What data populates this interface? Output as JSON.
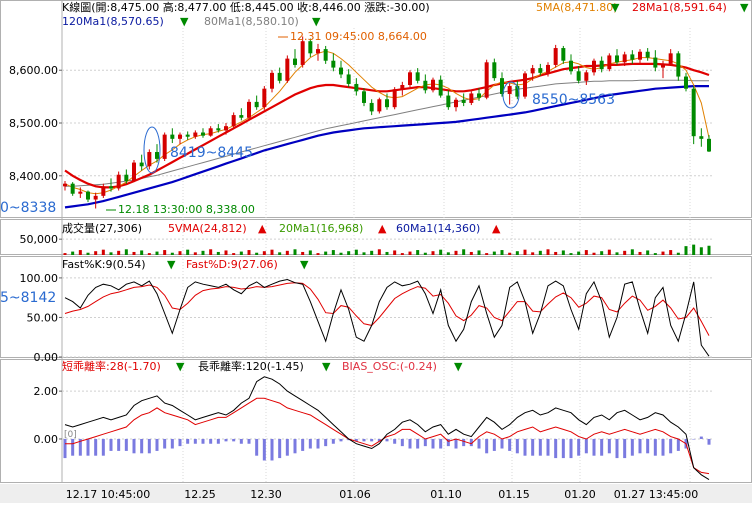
{
  "header": {
    "title": "K線圖",
    "ohlc": "(開:8,475.00 高:8,477.00 低:8,445.00 收:8,446.00 漲跌:-30.00)",
    "ma5": "5MA(8,471.80)",
    "ma28": "28Ma1(8,591.64)",
    "ma120": "120Ma1(8,570.65)",
    "ma80": "80Ma1(8,580.10)"
  },
  "annotations": {
    "high_label": "12.31 09:45:00  8,664.00",
    "low_label": "12.18 13:30:00  8,338.00",
    "range1": "8419~8445",
    "range2": "8550~8563",
    "left_cut_price": "0~8338",
    "left_cut_kd": "5~8142",
    "bias_flag": "[0]"
  },
  "volume_header": {
    "label": "成交量(27,306)",
    "vma5": "5VMA(24,812)",
    "vma20": "20Ma1(16,968)",
    "vma60": "60Ma1(14,360)"
  },
  "kd_header": {
    "k": "Fast%K:9(0.54)",
    "d": "Fast%D:9(27.06)"
  },
  "bias_header": {
    "short": "短乖離率:28(-1.70)",
    "long": "長乖離率:120(-1.45)",
    "osc": "BIAS_OSC:(-0.24)"
  },
  "colors": {
    "up": "#d40000",
    "down": "#008a00",
    "ma5": "#e08000",
    "ma28": "#e00000",
    "ma120": "#0000c0",
    "ma80": "#808080",
    "osc_bar": "#7a7ae0",
    "header_blue": "#0a1aa0",
    "header_green": "#3a9a00"
  },
  "chart_data": [
    {
      "type": "candlestick",
      "name": "price",
      "yticks": [
        "8,600.00",
        "8,500.00",
        "8,400.00"
      ],
      "ytick_values": [
        8600,
        8500,
        8400
      ],
      "ylim": [
        8320,
        8680
      ],
      "candles": [
        [
          8380,
          8390,
          8372,
          8385
        ],
        [
          8385,
          8388,
          8362,
          8366
        ],
        [
          8366,
          8378,
          8358,
          8370
        ],
        [
          8370,
          8372,
          8350,
          8355
        ],
        [
          8355,
          8368,
          8338,
          8362
        ],
        [
          8362,
          8385,
          8358,
          8380
        ],
        [
          8380,
          8395,
          8370,
          8376
        ],
        [
          8376,
          8408,
          8372,
          8402
        ],
        [
          8402,
          8412,
          8385,
          8390
        ],
        [
          8390,
          8430,
          8388,
          8425
        ],
        [
          8425,
          8440,
          8410,
          8418
        ],
        [
          8418,
          8450,
          8412,
          8445
        ],
        [
          8445,
          8460,
          8425,
          8432
        ],
        [
          8432,
          8482,
          8428,
          8478
        ],
        [
          8478,
          8490,
          8462,
          8470
        ],
        [
          8470,
          8482,
          8460,
          8478
        ],
        [
          8478,
          8484,
          8468,
          8474
        ],
        [
          8474,
          8486,
          8470,
          8482
        ],
        [
          8482,
          8490,
          8472,
          8476
        ],
        [
          8476,
          8494,
          8474,
          8490
        ],
        [
          8490,
          8498,
          8482,
          8486
        ],
        [
          8486,
          8500,
          8478,
          8494
        ],
        [
          8494,
          8520,
          8490,
          8515
        ],
        [
          8515,
          8528,
          8505,
          8510
        ],
        [
          8510,
          8545,
          8506,
          8540
        ],
        [
          8540,
          8552,
          8525,
          8530
        ],
        [
          8530,
          8570,
          8525,
          8565
        ],
        [
          8565,
          8600,
          8558,
          8595
        ],
        [
          8595,
          8605,
          8575,
          8580
        ],
        [
          8580,
          8628,
          8576,
          8622
        ],
        [
          8622,
          8640,
          8605,
          8610
        ],
        [
          8610,
          8664,
          8605,
          8655
        ],
        [
          8655,
          8660,
          8625,
          8632
        ],
        [
          8632,
          8650,
          8618,
          8640
        ],
        [
          8640,
          8646,
          8612,
          8618
        ],
        [
          8618,
          8632,
          8598,
          8605
        ],
        [
          8605,
          8618,
          8585,
          8592
        ],
        [
          8592,
          8602,
          8568,
          8574
        ],
        [
          8574,
          8585,
          8552,
          8560
        ],
        [
          8560,
          8566,
          8532,
          8538
        ],
        [
          8538,
          8545,
          8515,
          8522
        ],
        [
          8522,
          8548,
          8518,
          8545
        ],
        [
          8545,
          8556,
          8525,
          8530
        ],
        [
          8530,
          8568,
          8526,
          8564
        ],
        [
          8564,
          8578,
          8552,
          8572
        ],
        [
          8572,
          8600,
          8568,
          8596
        ],
        [
          8596,
          8604,
          8575,
          8580
        ],
        [
          8580,
          8592,
          8556,
          8562
        ],
        [
          8562,
          8586,
          8558,
          8582
        ],
        [
          8582,
          8590,
          8548,
          8552
        ],
        [
          8552,
          8562,
          8525,
          8530
        ],
        [
          8530,
          8548,
          8522,
          8544
        ],
        [
          8544,
          8556,
          8532,
          8538
        ],
        [
          8538,
          8560,
          8534,
          8556
        ],
        [
          8556,
          8566,
          8542,
          8548
        ],
        [
          8548,
          8620,
          8545,
          8615
        ],
        [
          8615,
          8622,
          8580,
          8585
        ],
        [
          8585,
          8596,
          8550,
          8555
        ],
        [
          8555,
          8575,
          8535,
          8570
        ],
        [
          8570,
          8580,
          8545,
          8550
        ],
        [
          8550,
          8598,
          8546,
          8594
        ],
        [
          8594,
          8610,
          8580,
          8604
        ],
        [
          8604,
          8612,
          8590,
          8595
        ],
        [
          8595,
          8615,
          8588,
          8610
        ],
        [
          8610,
          8648,
          8605,
          8642
        ],
        [
          8642,
          8646,
          8612,
          8618
        ],
        [
          8618,
          8630,
          8592,
          8598
        ],
        [
          8598,
          8608,
          8575,
          8580
        ],
        [
          8580,
          8600,
          8572,
          8596
        ],
        [
          8596,
          8622,
          8590,
          8618
        ],
        [
          8618,
          8626,
          8596,
          8602
        ],
        [
          8602,
          8632,
          8598,
          8628
        ],
        [
          8628,
          8640,
          8610,
          8615
        ],
        [
          8615,
          8635,
          8608,
          8630
        ],
        [
          8630,
          8638,
          8612,
          8620
        ],
        [
          8620,
          8640,
          8614,
          8635
        ],
        [
          8635,
          8642,
          8618,
          8624
        ],
        [
          8624,
          8638,
          8598,
          8605
        ],
        [
          8605,
          8618,
          8585,
          8612
        ],
        [
          8612,
          8640,
          8608,
          8632
        ],
        [
          8632,
          8636,
          8580,
          8588
        ],
        [
          8588,
          8595,
          8560,
          8565
        ],
        [
          8565,
          8570,
          8460,
          8475
        ],
        [
          8475,
          8490,
          8455,
          8470
        ],
        [
          8470,
          8477,
          8445,
          8446
        ]
      ],
      "ma5": [
        8385,
        8378,
        8374,
        8368,
        8366,
        8368,
        8373,
        8380,
        8388,
        8399,
        8410,
        8420,
        8428,
        8440,
        8449,
        8460,
        8468,
        8474,
        8478,
        8480,
        8484,
        8488,
        8495,
        8502,
        8510,
        8520,
        8530,
        8545,
        8560,
        8578,
        8596,
        8610,
        8624,
        8632,
        8636,
        8632,
        8622,
        8610,
        8596,
        8582,
        8568,
        8558,
        8550,
        8548,
        8550,
        8558,
        8566,
        8572,
        8574,
        8572,
        8566,
        8556,
        8548,
        8544,
        8546,
        8560,
        8572,
        8578,
        8576,
        8572,
        8574,
        8584,
        8592,
        8598,
        8606,
        8614,
        8616,
        8612,
        8605,
        8602,
        8605,
        8612,
        8615,
        8618,
        8620,
        8624,
        8624,
        8622,
        8620,
        8618,
        8612,
        8600,
        8572,
        8538,
        8472
      ],
      "ma28": [
        8410,
        8400,
        8392,
        8385,
        8380,
        8378,
        8378,
        8380,
        8384,
        8390,
        8396,
        8402,
        8410,
        8418,
        8426,
        8434,
        8442,
        8450,
        8458,
        8466,
        8474,
        8482,
        8490,
        8498,
        8506,
        8514,
        8522,
        8530,
        8538,
        8546,
        8554,
        8560,
        8566,
        8570,
        8572,
        8572,
        8570,
        8568,
        8566,
        8564,
        8562,
        8560,
        8560,
        8562,
        8564,
        8566,
        8568,
        8568,
        8566,
        8564,
        8562,
        8560,
        8560,
        8562,
        8565,
        8568,
        8572,
        8575,
        8578,
        8580,
        8582,
        8585,
        8590,
        8594,
        8598,
        8602,
        8604,
        8606,
        8608,
        8608,
        8609,
        8610,
        8610,
        8611,
        8612,
        8612,
        8612,
        8612,
        8611,
        8610,
        8608,
        8605,
        8600,
        8596,
        8591
      ],
      "ma80": [
        8380,
        8380,
        8381,
        8382,
        8383,
        8384,
        8386,
        8388,
        8390,
        8392,
        8395,
        8398,
        8401,
        8405,
        8409,
        8413,
        8417,
        8421,
        8425,
        8429,
        8433,
        8437,
        8441,
        8445,
        8449,
        8453,
        8457,
        8461,
        8465,
        8469,
        8473,
        8477,
        8481,
        8485,
        8489,
        8492,
        8495,
        8498,
        8501,
        8504,
        8507,
        8510,
        8513,
        8516,
        8519,
        8522,
        8525,
        8528,
        8531,
        8534,
        8537,
        8540,
        8543,
        8546,
        8549,
        8552,
        8555,
        8558,
        8561,
        8564,
        8566,
        8568,
        8570,
        8572,
        8574,
        8575,
        8576,
        8577,
        8578,
        8579,
        8579,
        8580,
        8580,
        8580,
        8580,
        8581,
        8581,
        8581,
        8581,
        8581,
        8581,
        8581,
        8580,
        8580,
        8580
      ],
      "ma120": [
        8340,
        8342,
        8344,
        8346,
        8349,
        8352,
        8356,
        8360,
        8364,
        8368,
        8372,
        8376,
        8380,
        8384,
        8388,
        8393,
        8398,
        8403,
        8408,
        8413,
        8418,
        8423,
        8428,
        8433,
        8438,
        8443,
        8448,
        8452,
        8456,
        8460,
        8464,
        8468,
        8472,
        8476,
        8479,
        8482,
        8484,
        8486,
        8488,
        8490,
        8491,
        8492,
        8493,
        8494,
        8495,
        8496,
        8497,
        8498,
        8499,
        8500,
        8501,
        8502,
        8504,
        8506,
        8508,
        8510,
        8512,
        8514,
        8516,
        8518,
        8520,
        8523,
        8526,
        8529,
        8532,
        8535,
        8538,
        8541,
        8544,
        8547,
        8550,
        8553,
        8555,
        8557,
        8559,
        8561,
        8563,
        8565,
        8566,
        8567,
        8568,
        8569,
        8570,
        8570,
        8570
      ]
    },
    {
      "type": "bar",
      "name": "volume",
      "yticks": [
        "50,000"
      ],
      "ytick_values": [
        50000
      ],
      "ylim": [
        0,
        60000
      ],
      "note": "per-bar volume, colored by candle direction"
    },
    {
      "type": "line",
      "name": "kd",
      "yticks": [
        "100.00",
        "50.00",
        "0.00"
      ],
      "ytick_values": [
        100,
        50,
        0
      ],
      "ylim": [
        0,
        110
      ],
      "k": [
        75,
        70,
        62,
        78,
        88,
        92,
        90,
        85,
        92,
        95,
        90,
        96,
        80,
        55,
        30,
        60,
        88,
        95,
        92,
        90,
        88,
        92,
        85,
        80,
        90,
        95,
        88,
        92,
        96,
        98,
        94,
        92,
        70,
        45,
        20,
        55,
        85,
        60,
        25,
        20,
        40,
        70,
        88,
        95,
        90,
        92,
        96,
        80,
        55,
        85,
        40,
        20,
        35,
        70,
        90,
        55,
        25,
        40,
        88,
        95,
        70,
        30,
        55,
        90,
        96,
        90,
        60,
        35,
        80,
        95,
        70,
        25,
        50,
        92,
        95,
        60,
        30,
        75,
        88,
        40,
        20,
        55,
        95,
        15,
        1
      ],
      "d": [
        55,
        58,
        60,
        64,
        70,
        76,
        80,
        82,
        85,
        88,
        89,
        91,
        88,
        78,
        62,
        60,
        68,
        78,
        84,
        86,
        87,
        89,
        88,
        86,
        87,
        89,
        88,
        89,
        91,
        93,
        94,
        93,
        86,
        73,
        56,
        55,
        65,
        63,
        52,
        42,
        40,
        50,
        62,
        74,
        80,
        85,
        89,
        87,
        77,
        79,
        68,
        52,
        46,
        53,
        65,
        62,
        50,
        46,
        58,
        70,
        70,
        58,
        57,
        67,
        76,
        81,
        75,
        63,
        68,
        77,
        75,
        60,
        57,
        68,
        77,
        72,
        59,
        64,
        72,
        62,
        48,
        50,
        62,
        45,
        27
      ]
    },
    {
      "type": "line",
      "name": "bias",
      "yticks": [
        "2.00",
        "0.00"
      ],
      "ytick_values": [
        2,
        0
      ],
      "ylim": [
        -1.8,
        2.8
      ],
      "short": [
        0.6,
        0.5,
        0.6,
        0.7,
        0.8,
        0.9,
        0.8,
        0.9,
        1.0,
        1.4,
        1.6,
        1.7,
        1.8,
        1.5,
        1.4,
        1.2,
        1.0,
        0.8,
        0.9,
        1.0,
        1.1,
        1.0,
        1.2,
        1.5,
        1.7,
        2.4,
        2.6,
        2.5,
        2.3,
        2.0,
        1.8,
        1.6,
        1.4,
        1.2,
        0.9,
        0.6,
        0.3,
        0.0,
        -0.2,
        -0.3,
        -0.4,
        -0.2,
        0.2,
        0.4,
        0.7,
        0.8,
        0.6,
        0.3,
        0.5,
        0.6,
        0.2,
        0.4,
        0.2,
        0.1,
        0.5,
        0.9,
        0.7,
        0.4,
        0.6,
        0.9,
        1.1,
        1.2,
        1.0,
        1.1,
        1.3,
        1.2,
        1.1,
        0.8,
        0.6,
        0.9,
        1.0,
        0.8,
        1.1,
        1.2,
        1.0,
        0.8,
        0.9,
        1.1,
        1.0,
        0.7,
        0.5,
        0.2,
        -1.2,
        -1.5,
        -1.7
      ],
      "long": [
        -0.2,
        -0.2,
        -0.1,
        0.0,
        0.1,
        0.2,
        0.3,
        0.4,
        0.5,
        0.8,
        1.0,
        1.1,
        1.3,
        1.1,
        1.0,
        0.9,
        0.8,
        0.6,
        0.7,
        0.8,
        0.9,
        0.9,
        1.1,
        1.3,
        1.5,
        1.7,
        1.7,
        1.6,
        1.5,
        1.3,
        1.2,
        1.1,
        1.0,
        0.8,
        0.6,
        0.4,
        0.2,
        0.0,
        -0.1,
        -0.2,
        -0.3,
        -0.1,
        0.1,
        0.2,
        0.4,
        0.4,
        0.2,
        0.0,
        0.1,
        0.2,
        -0.1,
        0.0,
        -0.1,
        -0.2,
        0.1,
        0.3,
        0.2,
        0.0,
        0.1,
        0.3,
        0.4,
        0.5,
        0.3,
        0.4,
        0.5,
        0.4,
        0.3,
        0.1,
        0.0,
        0.2,
        0.3,
        0.2,
        0.3,
        0.4,
        0.3,
        0.2,
        0.3,
        0.4,
        0.3,
        0.1,
        0.0,
        -0.2,
        -1.2,
        -1.4,
        -1.45
      ],
      "osc": [
        -0.8,
        -0.7,
        -0.7,
        -0.7,
        -0.7,
        -0.7,
        -0.5,
        -0.5,
        -0.5,
        -0.6,
        -0.6,
        -0.6,
        -0.5,
        -0.4,
        -0.4,
        -0.3,
        -0.2,
        -0.2,
        -0.2,
        -0.2,
        -0.2,
        -0.1,
        -0.1,
        -0.2,
        -0.2,
        -0.7,
        -0.9,
        -0.9,
        -0.8,
        -0.7,
        -0.6,
        -0.5,
        -0.4,
        -0.4,
        -0.3,
        -0.2,
        -0.1,
        -0.05,
        -0.1,
        -0.1,
        -0.1,
        -0.1,
        -0.1,
        -0.2,
        -0.3,
        -0.4,
        -0.4,
        -0.3,
        -0.4,
        -0.4,
        -0.3,
        -0.4,
        -0.3,
        -0.3,
        -0.4,
        -0.6,
        -0.5,
        -0.4,
        -0.5,
        -0.6,
        -0.7,
        -0.7,
        -0.7,
        -0.7,
        -0.8,
        -0.8,
        -0.8,
        -0.7,
        -0.6,
        -0.7,
        -0.7,
        -0.6,
        -0.8,
        -0.8,
        -0.7,
        -0.6,
        -0.6,
        -0.7,
        -0.7,
        -0.6,
        -0.5,
        -0.4,
        0.0,
        0.1,
        -0.24
      ]
    }
  ],
  "x_axis": [
    "12.17 10:45:00",
    "12.25",
    "12.30",
    "01.06",
    "01.10",
    "01.15",
    "01.20",
    "01.27 13:45:00"
  ]
}
